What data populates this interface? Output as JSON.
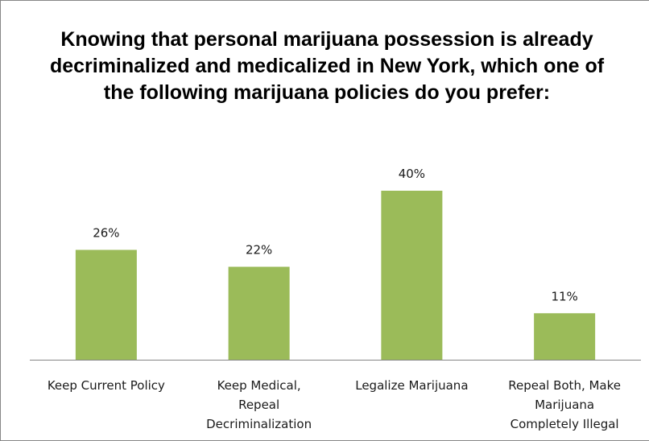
{
  "chart_data": {
    "type": "bar",
    "title": "Knowing that personal marijuana possession is already decriminalized and medicalized in New York, which one of the following marijuana policies do you prefer:",
    "categories": [
      [
        "Keep Current Policy"
      ],
      [
        "Keep Medical,",
        "Repeal",
        "Decriminalization"
      ],
      [
        "Legalize Marijuana"
      ],
      [
        "Repeal Both, Make",
        "Marijuana",
        "Completely Illegal"
      ]
    ],
    "values": [
      26,
      22,
      40,
      11
    ],
    "data_labels": [
      "26%",
      "22%",
      "40%",
      "11%"
    ],
    "xlabel": "",
    "ylabel": "",
    "ylim": [
      0,
      40
    ],
    "grid": false,
    "legend": "none",
    "bar_color": "#9BBB59",
    "axis_color": "#868686"
  }
}
